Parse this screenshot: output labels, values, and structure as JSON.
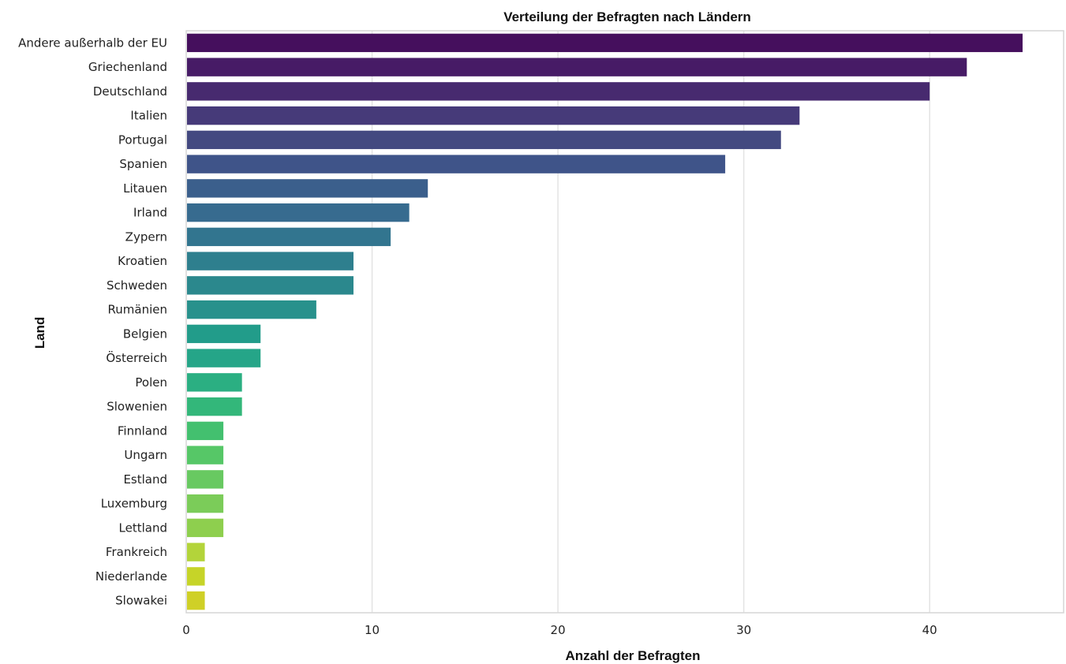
{
  "chart_data": {
    "type": "bar",
    "orientation": "horizontal",
    "title": "Verteilung der Befragten nach Ländern",
    "xlabel": "Anzahl der Befragten",
    "ylabel": "Land",
    "xlim": [
      0,
      47
    ],
    "xticks": [
      0,
      10,
      20,
      30,
      40
    ],
    "grid": "vertical",
    "colormap": "viridis",
    "categories": [
      "Andere  außerhalb der EU",
      "Griechenland",
      "Deutschland",
      "Italien",
      "Portugal",
      "Spanien",
      "Litauen",
      "Irland",
      "Zypern",
      "Kroatien",
      "Schweden",
      "Rumänien",
      "Belgien",
      "Österreich",
      "Polen",
      "Slowenien",
      "Finnland",
      "Ungarn",
      "Estland",
      "Luxemburg",
      "Lettland",
      "Frankreich",
      "Niederlande",
      "Slowakei"
    ],
    "values": [
      45,
      42,
      40,
      33,
      32,
      29,
      13,
      12,
      11,
      9,
      9,
      7,
      4,
      4,
      3,
      3,
      2,
      2,
      2,
      2,
      2,
      1,
      1,
      1
    ],
    "colors": [
      "#450f5d",
      "#471b66",
      "#472a6f",
      "#463a79",
      "#434980",
      "#3f5489",
      "#3b5f8c",
      "#376b8f",
      "#32758f",
      "#2e7f8e",
      "#2b888d",
      "#28918c",
      "#229c8a",
      "#25a588",
      "#2baf82",
      "#33b77a",
      "#43c06f",
      "#56c767",
      "#68c961",
      "#7bcc59",
      "#8ecf4e",
      "#b3d43a",
      "#c6d428",
      "#cfd027"
    ]
  }
}
